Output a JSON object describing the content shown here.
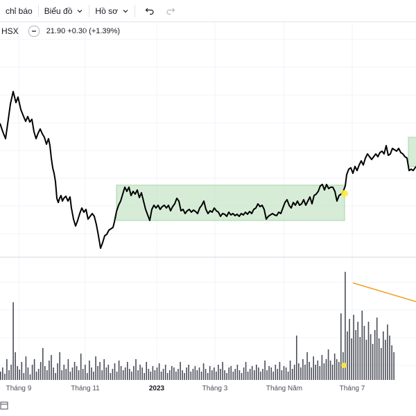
{
  "toolbar": {
    "indicators_label": "chỉ báo",
    "chart_type_label": "Biểu đồ",
    "profile_label": "Hồ sơ",
    "undo_icon": "undo-icon",
    "redo_icon": "redo-icon"
  },
  "legend": {
    "symbol": "HSX",
    "values": "21.90 +0.30 (+1.39%)"
  },
  "colors": {
    "price_line": "#000000",
    "range_box": "#c8e6c9",
    "volume": "#2a2e39",
    "trend_line": "#f0a020",
    "marker": "#ffeb3b"
  },
  "x_axis": {
    "labels": [
      "Tháng 9",
      "Tháng 11",
      "2023",
      "Tháng 3",
      "Tháng Năm",
      "Tháng 7"
    ]
  },
  "bottom_icon": "calendar-icon"
}
